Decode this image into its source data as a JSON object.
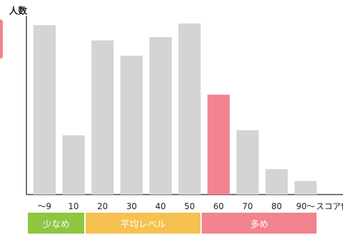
{
  "chart_data": {
    "type": "bar",
    "ylabel": "人数",
    "xlabel": "スコア値",
    "categories": [
      "～9",
      "10",
      "20",
      "30",
      "40",
      "50",
      "60",
      "70",
      "80",
      "90～"
    ],
    "values": [
      100,
      35,
      91,
      82,
      93,
      101,
      59,
      38,
      15,
      8
    ],
    "highlight_index": 6,
    "ylim": [
      0,
      105
    ],
    "grid": false,
    "bar_color": "#d4d4d4",
    "highlight_color": "#f1848f",
    "ranges": [
      {
        "label": "少なめ",
        "start": 0,
        "end": 1,
        "color": "#8dc63f"
      },
      {
        "label": "平均レベル",
        "start": 2,
        "end": 5,
        "color": "#f5c150"
      },
      {
        "label": "多め",
        "start": 6,
        "end": 9,
        "color": "#f1848f"
      }
    ]
  }
}
